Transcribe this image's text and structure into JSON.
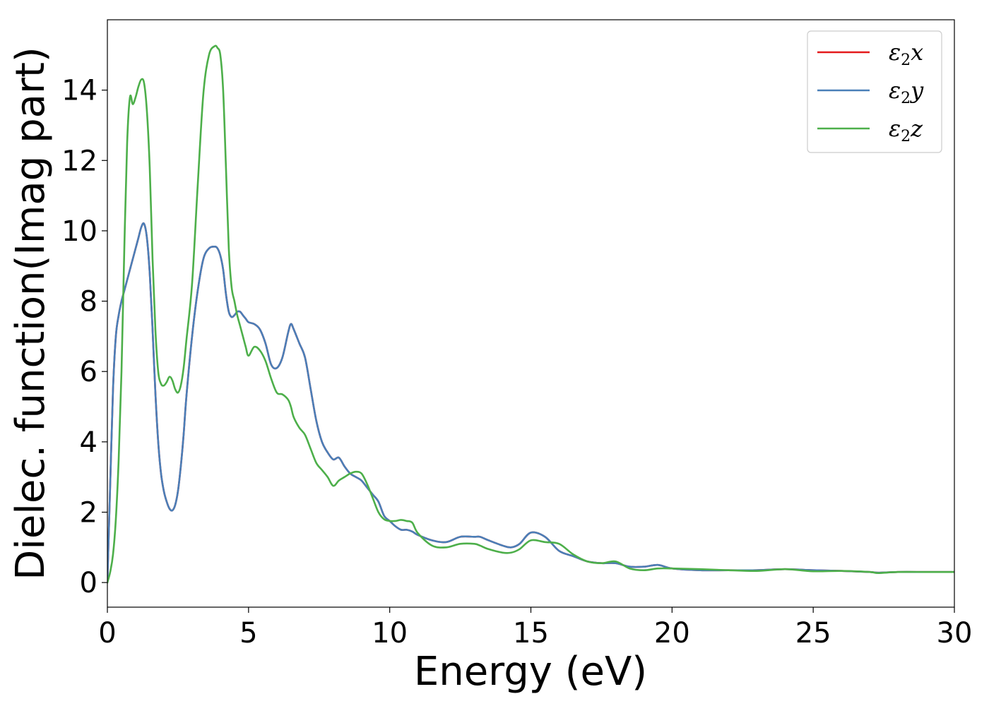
{
  "chart_data": {
    "type": "line",
    "title": "",
    "xlabel": "Energy (eV)",
    "ylabel": "Dielec. function(Imag part)",
    "xlim": [
      0,
      30
    ],
    "ylim": [
      -0.7,
      16
    ],
    "xticks": [
      0,
      5,
      10,
      15,
      20,
      25,
      30
    ],
    "yticks": [
      0,
      2,
      4,
      6,
      8,
      10,
      12,
      14
    ],
    "grid": false,
    "legend_position": "top-right",
    "series": [
      {
        "name": "ε2x",
        "legend_base": "ε",
        "legend_sub": "2",
        "legend_var": "x",
        "color": "#e41a1c",
        "x": [
          0,
          0.1,
          0.2,
          0.3,
          0.4,
          0.5,
          0.6,
          0.7,
          0.8,
          0.9,
          1.0,
          1.1,
          1.2,
          1.3,
          1.4,
          1.5,
          1.6,
          1.7,
          1.8,
          1.9,
          2.0,
          2.1,
          2.2,
          2.3,
          2.4,
          2.5,
          2.6,
          2.7,
          2.8,
          3.0,
          3.2,
          3.4,
          3.6,
          3.8,
          3.9,
          4.0,
          4.1,
          4.2,
          4.3,
          4.4,
          4.5,
          4.6,
          4.7,
          4.8,
          4.9,
          5.0,
          5.2,
          5.4,
          5.6,
          5.8,
          6.0,
          6.2,
          6.4,
          6.5,
          6.6,
          6.8,
          7.0,
          7.2,
          7.4,
          7.6,
          7.8,
          8.0,
          8.2,
          8.4,
          8.6,
          8.8,
          9.0,
          9.2,
          9.4,
          9.6,
          9.8,
          10.0,
          10.2,
          10.4,
          10.6,
          10.8,
          11.0,
          11.5,
          12.0,
          12.5,
          13.0,
          13.2,
          13.5,
          14.0,
          14.3,
          14.6,
          15.0,
          15.5,
          16.0,
          16.5,
          17.0,
          17.5,
          18.0,
          18.5,
          19.0,
          19.5,
          20.0,
          21.0,
          22.0,
          23.0,
          24.0,
          25.0,
          26.0,
          27.0,
          27.3,
          28.0,
          29.0,
          30.0
        ],
        "y": [
          0,
          2.8,
          5.5,
          7.0,
          7.6,
          8.0,
          8.3,
          8.6,
          8.9,
          9.2,
          9.5,
          9.8,
          10.1,
          10.2,
          9.8,
          8.8,
          7.2,
          5.4,
          4.0,
          3.1,
          2.6,
          2.3,
          2.1,
          2.05,
          2.2,
          2.6,
          3.3,
          4.2,
          5.3,
          7.0,
          8.3,
          9.2,
          9.5,
          9.55,
          9.5,
          9.3,
          8.9,
          8.2,
          7.7,
          7.55,
          7.6,
          7.7,
          7.7,
          7.6,
          7.5,
          7.4,
          7.35,
          7.2,
          6.8,
          6.2,
          6.1,
          6.4,
          7.1,
          7.35,
          7.2,
          6.8,
          6.4,
          5.5,
          4.6,
          4.0,
          3.7,
          3.5,
          3.55,
          3.3,
          3.1,
          3.0,
          2.9,
          2.7,
          2.5,
          2.3,
          1.9,
          1.75,
          1.6,
          1.5,
          1.5,
          1.45,
          1.35,
          1.2,
          1.15,
          1.3,
          1.3,
          1.3,
          1.2,
          1.05,
          1.0,
          1.1,
          1.42,
          1.3,
          0.9,
          0.75,
          0.6,
          0.55,
          0.55,
          0.45,
          0.45,
          0.5,
          0.4,
          0.35,
          0.35,
          0.35,
          0.38,
          0.35,
          0.33,
          0.3,
          0.28,
          0.3,
          0.3,
          0.3
        ]
      },
      {
        "name": "ε2y",
        "legend_base": "ε",
        "legend_sub": "2",
        "legend_var": "y",
        "color": "#4a7fb8",
        "x": [
          0,
          0.1,
          0.2,
          0.3,
          0.4,
          0.5,
          0.6,
          0.7,
          0.8,
          0.9,
          1.0,
          1.1,
          1.2,
          1.3,
          1.4,
          1.5,
          1.6,
          1.7,
          1.8,
          1.9,
          2.0,
          2.1,
          2.2,
          2.3,
          2.4,
          2.5,
          2.6,
          2.7,
          2.8,
          3.0,
          3.2,
          3.4,
          3.6,
          3.8,
          3.9,
          4.0,
          4.1,
          4.2,
          4.3,
          4.4,
          4.5,
          4.6,
          4.7,
          4.8,
          4.9,
          5.0,
          5.2,
          5.4,
          5.6,
          5.8,
          6.0,
          6.2,
          6.4,
          6.5,
          6.6,
          6.8,
          7.0,
          7.2,
          7.4,
          7.6,
          7.8,
          8.0,
          8.2,
          8.4,
          8.6,
          8.8,
          9.0,
          9.2,
          9.4,
          9.6,
          9.8,
          10.0,
          10.2,
          10.4,
          10.6,
          10.8,
          11.0,
          11.5,
          12.0,
          12.5,
          13.0,
          13.2,
          13.5,
          14.0,
          14.3,
          14.6,
          15.0,
          15.5,
          16.0,
          16.5,
          17.0,
          17.5,
          18.0,
          18.5,
          19.0,
          19.5,
          20.0,
          21.0,
          22.0,
          23.0,
          24.0,
          25.0,
          26.0,
          27.0,
          27.3,
          28.0,
          29.0,
          30.0
        ],
        "y": [
          0,
          2.8,
          5.5,
          7.0,
          7.6,
          8.0,
          8.3,
          8.6,
          8.9,
          9.2,
          9.5,
          9.8,
          10.1,
          10.2,
          9.8,
          8.8,
          7.2,
          5.4,
          4.0,
          3.1,
          2.6,
          2.3,
          2.1,
          2.05,
          2.2,
          2.6,
          3.3,
          4.2,
          5.3,
          7.0,
          8.3,
          9.2,
          9.5,
          9.55,
          9.5,
          9.3,
          8.9,
          8.2,
          7.7,
          7.55,
          7.6,
          7.7,
          7.7,
          7.6,
          7.5,
          7.4,
          7.35,
          7.2,
          6.8,
          6.2,
          6.1,
          6.4,
          7.1,
          7.35,
          7.2,
          6.8,
          6.4,
          5.5,
          4.6,
          4.0,
          3.7,
          3.5,
          3.55,
          3.3,
          3.1,
          3.0,
          2.9,
          2.7,
          2.5,
          2.3,
          1.9,
          1.75,
          1.6,
          1.5,
          1.5,
          1.45,
          1.35,
          1.2,
          1.15,
          1.3,
          1.3,
          1.3,
          1.2,
          1.05,
          1.0,
          1.1,
          1.42,
          1.3,
          0.9,
          0.75,
          0.6,
          0.55,
          0.55,
          0.45,
          0.45,
          0.5,
          0.4,
          0.35,
          0.35,
          0.35,
          0.38,
          0.35,
          0.33,
          0.3,
          0.28,
          0.3,
          0.3,
          0.3
        ]
      },
      {
        "name": "ε2z",
        "legend_base": "ε",
        "legend_sub": "2",
        "legend_var": "z",
        "color": "#4daf4a",
        "x": [
          0,
          0.1,
          0.2,
          0.3,
          0.4,
          0.5,
          0.6,
          0.7,
          0.8,
          0.9,
          1.0,
          1.1,
          1.2,
          1.3,
          1.4,
          1.5,
          1.6,
          1.7,
          1.8,
          1.9,
          2.0,
          2.1,
          2.2,
          2.3,
          2.4,
          2.5,
          2.6,
          2.7,
          2.8,
          3.0,
          3.2,
          3.4,
          3.6,
          3.8,
          3.9,
          4.0,
          4.1,
          4.2,
          4.3,
          4.4,
          4.5,
          4.6,
          4.7,
          4.8,
          4.9,
          5.0,
          5.2,
          5.4,
          5.6,
          5.8,
          6.0,
          6.2,
          6.4,
          6.5,
          6.6,
          6.8,
          7.0,
          7.2,
          7.4,
          7.6,
          7.8,
          8.0,
          8.2,
          8.4,
          8.6,
          8.8,
          9.0,
          9.2,
          9.4,
          9.6,
          9.8,
          10.0,
          10.2,
          10.4,
          10.6,
          10.8,
          11.0,
          11.5,
          12.0,
          12.5,
          13.0,
          13.2,
          13.5,
          14.0,
          14.3,
          14.6,
          15.0,
          15.5,
          16.0,
          16.5,
          17.0,
          17.5,
          18.0,
          18.5,
          19.0,
          19.5,
          20.0,
          21.0,
          22.0,
          23.0,
          24.0,
          25.0,
          26.0,
          27.0,
          27.3,
          28.0,
          29.0,
          30.0
        ],
        "y": [
          0,
          0.3,
          0.8,
          1.8,
          3.5,
          6.0,
          9.5,
          12.5,
          13.8,
          13.6,
          13.8,
          14.1,
          14.3,
          14.2,
          13.4,
          11.8,
          9.2,
          7.2,
          6.0,
          5.65,
          5.6,
          5.7,
          5.85,
          5.75,
          5.5,
          5.4,
          5.6,
          6.1,
          6.9,
          8.5,
          11.3,
          13.9,
          15.0,
          15.25,
          15.2,
          15.0,
          14.0,
          11.8,
          9.5,
          8.4,
          8.0,
          7.6,
          7.3,
          7.0,
          6.7,
          6.45,
          6.7,
          6.6,
          6.3,
          5.8,
          5.4,
          5.35,
          5.2,
          5.0,
          4.7,
          4.4,
          4.2,
          3.8,
          3.4,
          3.2,
          3.0,
          2.75,
          2.9,
          3.0,
          3.1,
          3.15,
          3.1,
          2.8,
          2.4,
          2.0,
          1.8,
          1.75,
          1.75,
          1.78,
          1.75,
          1.7,
          1.4,
          1.05,
          1.0,
          1.1,
          1.1,
          1.05,
          0.95,
          0.85,
          0.85,
          0.95,
          1.2,
          1.15,
          1.1,
          0.8,
          0.6,
          0.55,
          0.6,
          0.4,
          0.35,
          0.4,
          0.4,
          0.38,
          0.35,
          0.33,
          0.38,
          0.32,
          0.33,
          0.3,
          0.27,
          0.3,
          0.3,
          0.3
        ]
      }
    ]
  }
}
